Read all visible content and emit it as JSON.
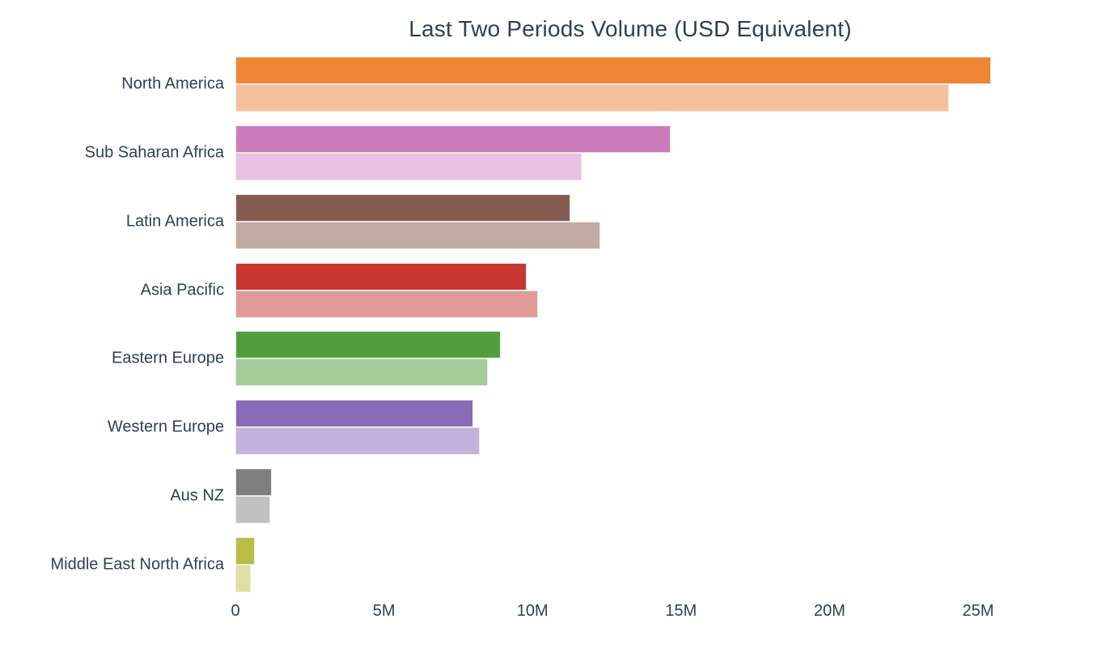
{
  "title": "Last Two Periods Volume (USD Equivalent)",
  "text_color": "#2e4057",
  "background_color": "#ffffff",
  "chart_data": {
    "type": "bar",
    "orientation": "horizontal",
    "title": "Last Two Periods Volume (USD Equivalent)",
    "xlabel": "",
    "ylabel": "",
    "grid": false,
    "legend": "none",
    "xlim_usd_millions": [
      0,
      29
    ],
    "x_ticks": [
      {
        "value": 0,
        "label": "0"
      },
      {
        "value": 5,
        "label": "5M"
      },
      {
        "value": 10,
        "label": "10M"
      },
      {
        "value": 15,
        "label": "15M"
      },
      {
        "value": 20,
        "label": "20M"
      },
      {
        "value": 25,
        "label": "25M"
      }
    ],
    "categories": [
      "North America",
      "Sub Saharan Africa",
      "Latin America",
      "Asia Pacific",
      "Eastern Europe",
      "Western Europe",
      "Aus NZ",
      "Middle East North Africa"
    ],
    "series": [
      {
        "name": "period-1-latest",
        "position": "top-dark-bar",
        "values_usd_millions": [
          25.44,
          14.65,
          11.26,
          9.79,
          8.92,
          8.0,
          1.23,
          0.66
        ],
        "colors": [
          "#ee8634",
          "#ce7bbe",
          "#865c52",
          "#c63732",
          "#519f3c",
          "#8a6bb8",
          "#7e7e7e",
          "#b9bd45"
        ]
      },
      {
        "name": "period-2-prior",
        "position": "bottom-light-bar",
        "values_usd_millions": [
          24.02,
          11.65,
          12.27,
          10.19,
          8.5,
          8.22,
          1.17,
          0.52
        ],
        "colors": [
          "#f5c19d",
          "#e9c1e5",
          "#c3aaa3",
          "#e09b99",
          "#a3cd99",
          "#c3b2de",
          "#c1c1c1",
          "#dee0a2"
        ]
      }
    ]
  }
}
